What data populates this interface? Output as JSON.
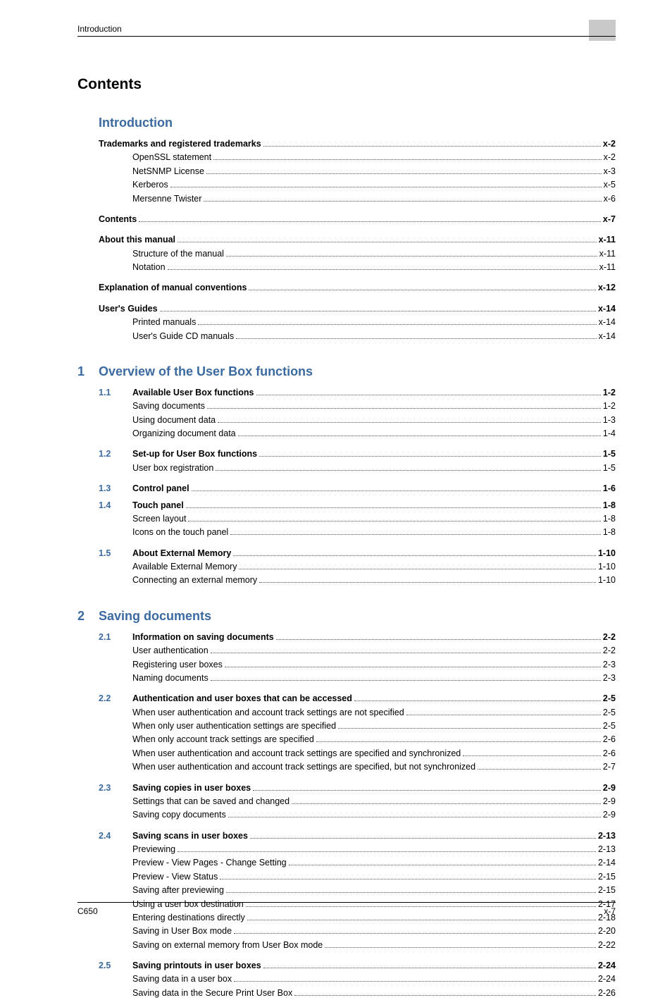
{
  "page": {
    "running_header": "Introduction",
    "footer_left": "C650",
    "footer_right": "x-7",
    "h1": "Contents"
  },
  "colors": {
    "heading_blue": "#3b6aa0",
    "text": "#000000",
    "header_block": "#c9c9c9",
    "background": "#ffffff",
    "leader": "#555555"
  },
  "typography": {
    "body_fontsize": 12.5,
    "h1_fontsize": 21,
    "section_fontsize": 18,
    "footer_fontsize": 12,
    "header_fontsize": 12,
    "font_family": "Arial"
  },
  "sections": [
    {
      "number": "",
      "title": "Introduction",
      "entries": [
        {
          "level": 0,
          "bold": true,
          "num": "",
          "label": "Trademarks and registered trademarks",
          "page": "x-2"
        },
        {
          "level": 1,
          "bold": false,
          "num": "",
          "label": "OpenSSL statement",
          "page": "x-2"
        },
        {
          "level": 1,
          "bold": false,
          "num": "",
          "label": "NetSNMP License",
          "page": "x-3"
        },
        {
          "level": 1,
          "bold": false,
          "num": "",
          "label": "Kerberos",
          "page": "x-5"
        },
        {
          "level": 1,
          "bold": false,
          "num": "",
          "label": "Mersenne Twister",
          "page": "x-6"
        },
        {
          "gap": true
        },
        {
          "level": 0,
          "bold": true,
          "num": "",
          "label": "Contents",
          "page": "x-7"
        },
        {
          "gap": true
        },
        {
          "level": 0,
          "bold": true,
          "num": "",
          "label": "About this manual",
          "page": "x-11"
        },
        {
          "level": 1,
          "bold": false,
          "num": "",
          "label": "Structure of the manual",
          "page": "x-11"
        },
        {
          "level": 1,
          "bold": false,
          "num": "",
          "label": "Notation",
          "page": "x-11"
        },
        {
          "gap": true
        },
        {
          "level": 0,
          "bold": true,
          "num": "",
          "label": "Explanation of manual conventions",
          "page": "x-12"
        },
        {
          "gap": true
        },
        {
          "level": 0,
          "bold": true,
          "num": "",
          "label": "User's Guides",
          "page": "x-14"
        },
        {
          "level": 1,
          "bold": false,
          "num": "",
          "label": "Printed manuals",
          "page": "x-14"
        },
        {
          "level": 1,
          "bold": false,
          "num": "",
          "label": "User's Guide CD manuals",
          "page": "x-14"
        }
      ]
    },
    {
      "number": "1",
      "title": "Overview of the User Box functions",
      "entries": [
        {
          "level": 0,
          "bold": true,
          "num": "1.1",
          "label": "Available User Box functions",
          "page": "1-2"
        },
        {
          "level": 1,
          "bold": false,
          "num": "",
          "label": "Saving documents",
          "page": "1-2"
        },
        {
          "level": 1,
          "bold": false,
          "num": "",
          "label": "Using document data",
          "page": "1-3"
        },
        {
          "level": 1,
          "bold": false,
          "num": "",
          "label": "Organizing document data",
          "page": "1-4"
        },
        {
          "gap": true
        },
        {
          "level": 0,
          "bold": true,
          "num": "1.2",
          "label": "Set-up for User Box functions",
          "page": "1-5"
        },
        {
          "level": 1,
          "bold": false,
          "num": "",
          "label": "User box registration",
          "page": "1-5"
        },
        {
          "gap": true
        },
        {
          "level": 0,
          "bold": true,
          "num": "1.3",
          "label": "Control panel",
          "page": "1-6"
        },
        {
          "gap_sm": true
        },
        {
          "level": 0,
          "bold": true,
          "num": "1.4",
          "label": "Touch panel",
          "page": "1-8"
        },
        {
          "level": 1,
          "bold": false,
          "num": "",
          "label": "Screen layout",
          "page": "1-8"
        },
        {
          "level": 1,
          "bold": false,
          "num": "",
          "label": "Icons on the touch panel",
          "page": "1-8"
        },
        {
          "gap": true
        },
        {
          "level": 0,
          "bold": true,
          "num": "1.5",
          "label": "About External Memory",
          "page": "1-10"
        },
        {
          "level": 1,
          "bold": false,
          "num": "",
          "label": "Available External Memory",
          "page": "1-10"
        },
        {
          "level": 1,
          "bold": false,
          "num": "",
          "label": "Connecting an external memory",
          "page": "1-10"
        }
      ]
    },
    {
      "number": "2",
      "title": "Saving documents",
      "entries": [
        {
          "level": 0,
          "bold": true,
          "num": "2.1",
          "label": "Information on saving documents",
          "page": "2-2"
        },
        {
          "level": 1,
          "bold": false,
          "num": "",
          "label": "User authentication",
          "page": "2-2"
        },
        {
          "level": 1,
          "bold": false,
          "num": "",
          "label": "Registering user boxes",
          "page": "2-3"
        },
        {
          "level": 1,
          "bold": false,
          "num": "",
          "label": "Naming documents",
          "page": "2-3"
        },
        {
          "gap": true
        },
        {
          "level": 0,
          "bold": true,
          "num": "2.2",
          "label": "Authentication and user boxes that can be accessed",
          "page": "2-5"
        },
        {
          "level": 1,
          "bold": false,
          "num": "",
          "label": "When user authentication and account track settings are not specified",
          "page": "2-5"
        },
        {
          "level": 1,
          "bold": false,
          "num": "",
          "label": "When only user authentication settings are specified",
          "page": "2-5"
        },
        {
          "level": 1,
          "bold": false,
          "num": "",
          "label": "When only account track settings are specified",
          "page": "2-6"
        },
        {
          "level": 1,
          "bold": false,
          "num": "",
          "label": "When user authentication and account track settings are specified and synchronized",
          "page": "2-6"
        },
        {
          "level": 1,
          "bold": false,
          "num": "",
          "label": "When user authentication and account track settings are specified, but not synchronized",
          "page": "2-7"
        },
        {
          "gap": true
        },
        {
          "level": 0,
          "bold": true,
          "num": "2.3",
          "label": "Saving copies in user boxes",
          "page": "2-9"
        },
        {
          "level": 1,
          "bold": false,
          "num": "",
          "label": "Settings that can be saved and changed",
          "page": "2-9"
        },
        {
          "level": 1,
          "bold": false,
          "num": "",
          "label": "Saving copy documents",
          "page": "2-9"
        },
        {
          "gap": true
        },
        {
          "level": 0,
          "bold": true,
          "num": "2.4",
          "label": "Saving scans in user boxes",
          "page": "2-13"
        },
        {
          "level": 1,
          "bold": false,
          "num": "",
          "label": "Previewing",
          "page": "2-13"
        },
        {
          "level": 1,
          "bold": false,
          "num": "",
          "label": "Preview - View Pages - Change Setting",
          "page": "2-14"
        },
        {
          "level": 1,
          "bold": false,
          "num": "",
          "label": "Preview - View Status",
          "page": "2-15"
        },
        {
          "level": 1,
          "bold": false,
          "num": "",
          "label": "Saving after previewing",
          "page": "2-15"
        },
        {
          "level": 1,
          "bold": false,
          "num": "",
          "label": "Using a user box destination",
          "page": "2-17"
        },
        {
          "level": 1,
          "bold": false,
          "num": "",
          "label": "Entering destinations directly",
          "page": "2-18"
        },
        {
          "level": 1,
          "bold": false,
          "num": "",
          "label": "Saving in User Box mode",
          "page": "2-20"
        },
        {
          "level": 1,
          "bold": false,
          "num": "",
          "label": "Saving on external memory from User Box mode",
          "page": "2-22"
        },
        {
          "gap": true
        },
        {
          "level": 0,
          "bold": true,
          "num": "2.5",
          "label": "Saving printouts in user boxes",
          "page": "2-24"
        },
        {
          "level": 1,
          "bold": false,
          "num": "",
          "label": "Saving data in a user box",
          "page": "2-24"
        },
        {
          "level": 1,
          "bold": false,
          "num": "",
          "label": "Saving data in the Secure Print User Box",
          "page": "2-26"
        }
      ]
    }
  ]
}
